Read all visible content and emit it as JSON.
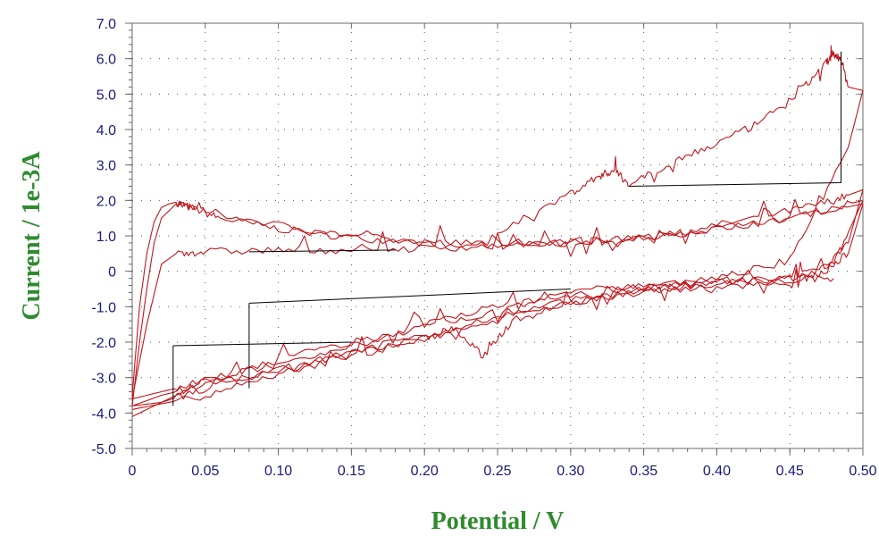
{
  "chart_data": {
    "type": "line",
    "title": "",
    "xlabel": "Potential / V",
    "ylabel": "Current / 1e-3A",
    "xlim": [
      0,
      0.5
    ],
    "ylim": [
      -5.0,
      7.0
    ],
    "grid": true,
    "x_ticks": [
      "0",
      "0.05",
      "0.10",
      "0.15",
      "0.20",
      "0.25",
      "0.30",
      "0.35",
      "0.40",
      "0.45",
      "0.50"
    ],
    "y_ticks": [
      "7.0",
      "6.0",
      "5.0",
      "4.0",
      "3.0",
      "2.0",
      "1.0",
      "0",
      "-1.0",
      "-2.0",
      "-3.0",
      "-4.0",
      "-5.0"
    ],
    "colors": {
      "trace": "#c0161c",
      "connector": "#000000",
      "axis_text": "#1a1a7a",
      "axis_title": "#2e8b2e",
      "grid": "#555555"
    },
    "series": [
      {
        "x": [
          0.0,
          0.005,
          0.01,
          0.015,
          0.02,
          0.025,
          0.03,
          0.04,
          0.06,
          0.1,
          0.15,
          0.2,
          0.25,
          0.3,
          0.35,
          0.4,
          0.45,
          0.48,
          0.5
        ],
        "y": [
          -3.5,
          -1.0,
          0.5,
          1.4,
          1.8,
          1.9,
          1.95,
          1.8,
          1.5,
          1.2,
          0.95,
          0.8,
          0.8,
          0.85,
          1.0,
          1.3,
          1.7,
          2.0,
          2.3
        ]
      },
      {
        "x": [
          0.5,
          0.49,
          0.47,
          0.45,
          0.4,
          0.35,
          0.3,
          0.25,
          0.2,
          0.15,
          0.1,
          0.05,
          0.02,
          0.0
        ],
        "y": [
          2.3,
          0.8,
          0.0,
          -0.1,
          -0.35,
          -0.5,
          -0.8,
          -1.3,
          -1.8,
          -2.3,
          -2.8,
          -3.3,
          -3.7,
          -3.8
        ]
      },
      {
        "x": [
          0.0,
          0.005,
          0.01,
          0.015,
          0.02,
          0.03,
          0.05,
          0.1,
          0.15,
          0.2,
          0.25,
          0.3,
          0.35,
          0.4,
          0.45,
          0.5
        ],
        "y": [
          -3.8,
          -2.0,
          -0.5,
          0.8,
          1.5,
          1.9,
          1.7,
          1.3,
          1.0,
          0.8,
          0.75,
          0.8,
          0.95,
          1.2,
          1.5,
          2.0
        ]
      },
      {
        "x": [
          0.5,
          0.48,
          0.45,
          0.4,
          0.35,
          0.3,
          0.25,
          0.2,
          0.15,
          0.1,
          0.05,
          0.02,
          0.0
        ],
        "y": [
          2.0,
          0.2,
          -0.2,
          -0.3,
          -0.45,
          -0.7,
          -1.1,
          -1.6,
          -2.1,
          -2.6,
          -3.1,
          -3.4,
          -3.6
        ]
      },
      {
        "x": [
          0.0,
          0.01,
          0.02,
          0.03,
          0.05,
          0.1,
          0.15,
          0.2,
          0.25,
          0.3,
          0.35,
          0.4,
          0.45,
          0.5
        ],
        "y": [
          -3.6,
          -1.5,
          0.2,
          0.5,
          0.55,
          0.6,
          0.6,
          0.65,
          0.7,
          0.8,
          0.95,
          1.2,
          1.5,
          1.9
        ]
      },
      {
        "x": [
          0.5,
          0.49,
          0.47,
          0.45,
          0.4,
          0.35,
          0.3,
          0.25,
          0.2,
          0.15,
          0.1,
          0.05,
          0.0
        ],
        "y": [
          1.9,
          0.5,
          -0.1,
          -0.3,
          -0.45,
          -0.6,
          -0.9,
          -1.4,
          -1.9,
          -2.4,
          -2.9,
          -3.5,
          -3.9
        ]
      },
      {
        "x": [
          0.0,
          0.02,
          0.05,
          0.1,
          0.15,
          0.2,
          0.22,
          0.24,
          0.26,
          0.3,
          0.35,
          0.4,
          0.45,
          0.48
        ],
        "y": [
          -3.8,
          -3.5,
          -3.2,
          -2.8,
          -2.3,
          -1.9,
          -1.6,
          -2.4,
          -1.4,
          -0.9,
          -0.5,
          -0.3,
          -0.25,
          -0.2
        ]
      },
      {
        "x": [
          0.25,
          0.3,
          0.32,
          0.33,
          0.34,
          0.37,
          0.4,
          0.43,
          0.46,
          0.475,
          0.48,
          0.485,
          0.49,
          0.5
        ],
        "y": [
          1.1,
          2.2,
          2.7,
          2.85,
          2.45,
          3.1,
          3.6,
          4.2,
          5.2,
          5.9,
          6.1,
          6.0,
          5.2,
          5.1
        ]
      },
      {
        "x": [
          0.5,
          0.49,
          0.45,
          0.4,
          0.35,
          0.3,
          0.25,
          0.2,
          0.15,
          0.1,
          0.05,
          0.03,
          0.0
        ],
        "y": [
          5.1,
          3.5,
          0.3,
          -0.2,
          -0.35,
          -0.6,
          -1.0,
          -1.5,
          -2.0,
          -2.5,
          -3.1,
          -3.5,
          -4.1
        ]
      }
    ],
    "connector_segments": [
      [
        [
          0.485,
          6.2
        ],
        [
          0.485,
          2.5
        ],
        [
          0.34,
          2.4
        ]
      ],
      [
        [
          0.08,
          0.55
        ],
        [
          0.18,
          0.6
        ]
      ],
      [
        [
          0.08,
          -0.9
        ],
        [
          0.08,
          -3.3
        ]
      ],
      [
        [
          0.08,
          -0.9
        ],
        [
          0.3,
          -0.5
        ]
      ],
      [
        [
          0.028,
          -2.1
        ],
        [
          0.15,
          -2.0
        ]
      ],
      [
        [
          0.028,
          -2.1
        ],
        [
          0.028,
          -3.8
        ]
      ]
    ]
  }
}
